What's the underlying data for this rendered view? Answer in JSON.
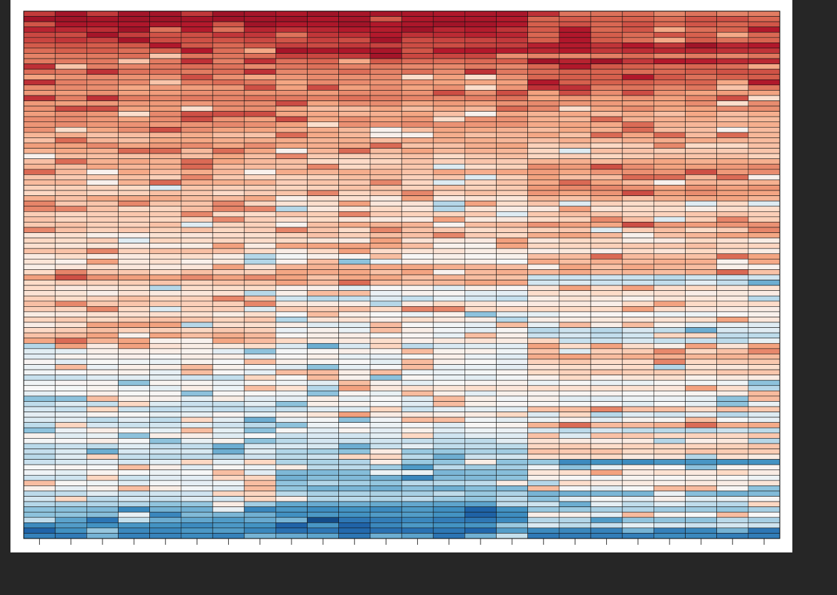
{
  "chart_data": {
    "type": "heatmap",
    "title": "",
    "xlabel": "",
    "ylabel": "",
    "n_columns": 24,
    "n_rows": 100,
    "column_groups": [
      8,
      8,
      8
    ],
    "x_tick_labels": [],
    "y_tick_labels": [],
    "colormap": "RdBu_r",
    "value_range": [
      -1,
      1
    ],
    "legend": "none",
    "grid": false,
    "group_color_levels": [
      [
        1.0,
        1.0,
        0.9,
        0.8,
        0.7,
        0.7,
        0.6,
        0.6,
        0.5,
        0.5,
        0.5,
        0.5,
        0.4,
        0.5,
        0.4,
        0.4,
        0.5,
        0.4,
        0.4,
        0.4,
        0.4,
        0.4,
        0.4,
        0.3,
        0.3,
        0.4,
        0.3,
        0.3,
        0.3,
        0.3,
        0.3,
        0.2,
        0.3,
        0.2,
        0.2,
        0.3,
        0.2,
        0.2,
        0.2,
        0.2,
        0.2,
        0.2,
        0.1,
        0.2,
        0.1,
        0.2,
        0.1,
        0.1,
        0.1,
        0.2,
        0.4,
        0.2,
        0.1,
        0.1,
        0.2,
        0.2,
        0.2,
        0.1,
        0.2,
        0.1,
        0.2,
        0.3,
        0.3,
        0.1,
        0.0,
        0.0,
        0.0,
        0.0,
        0.0,
        -0.1,
        0.0,
        0.0,
        0.0,
        0.0,
        -0.1,
        -0.1,
        0.0,
        -0.1,
        -0.1,
        0.0,
        0.0,
        0.0,
        -0.1,
        -0.1,
        -0.1,
        -0.1,
        0.0,
        0.0,
        -0.1,
        0.0,
        0.0,
        -0.1,
        -0.1,
        -0.2,
        -0.3,
        -0.3,
        -0.4,
        -0.5,
        -0.5,
        -0.6
      ],
      [
        0.9,
        0.9,
        0.9,
        0.8,
        0.8,
        0.7,
        0.7,
        0.9,
        0.7,
        0.6,
        0.5,
        0.5,
        0.4,
        0.4,
        0.4,
        0.4,
        0.5,
        0.4,
        0.3,
        0.3,
        0.4,
        0.4,
        0.3,
        0.3,
        0.3,
        0.3,
        0.3,
        0.2,
        0.2,
        0.2,
        0.3,
        0.2,
        0.2,
        0.2,
        0.2,
        0.1,
        0.1,
        0.1,
        0.2,
        0.1,
        0.3,
        0.2,
        0.2,
        0.1,
        0.3,
        0.1,
        0.0,
        0.0,
        0.3,
        0.3,
        0.3,
        0.3,
        0.0,
        0.0,
        -0.1,
        0.1,
        0.2,
        0.0,
        0.1,
        0.0,
        0.0,
        0.0,
        0.1,
        -0.1,
        0.0,
        0.0,
        0.0,
        0.0,
        0.0,
        0.0,
        0.0,
        0.1,
        0.0,
        0.0,
        0.0,
        -0.1,
        0.1,
        0.0,
        0.0,
        0.0,
        -0.1,
        -0.1,
        -0.1,
        -0.2,
        -0.1,
        -0.2,
        -0.2,
        -0.3,
        -0.3,
        -0.2,
        -0.3,
        -0.2,
        -0.2,
        -0.4,
        -0.5,
        -0.5,
        -0.6,
        -0.5,
        -0.7,
        -0.4
      ],
      [
        0.5,
        0.6,
        0.6,
        0.6,
        0.6,
        0.6,
        0.8,
        0.8,
        0.5,
        0.8,
        0.6,
        0.6,
        0.6,
        0.6,
        0.5,
        0.4,
        0.4,
        0.4,
        0.4,
        0.3,
        0.3,
        0.3,
        0.3,
        0.3,
        0.3,
        0.2,
        0.2,
        0.2,
        0.3,
        0.4,
        0.4,
        0.3,
        0.3,
        0.4,
        0.4,
        0.3,
        0.2,
        0.1,
        0.2,
        0.2,
        0.4,
        0.2,
        0.3,
        0.1,
        0.2,
        0.1,
        0.3,
        0.3,
        0.3,
        0.3,
        -0.1,
        -0.1,
        0.1,
        0.1,
        0.1,
        0.1,
        0.1,
        0.0,
        0.1,
        0.0,
        -0.1,
        -0.1,
        -0.1,
        0.1,
        0.2,
        0.3,
        0.2,
        0.1,
        0.2,
        0.1,
        0.0,
        0.1,
        0.0,
        0.0,
        0.0,
        0.2,
        -0.1,
        0.0,
        0.3,
        -0.1,
        0.2,
        0.1,
        0.2,
        0.2,
        0.1,
        -0.5,
        0.0,
        0.1,
        0.0,
        0.1,
        0.0,
        -0.3,
        0.0,
        -0.1,
        -0.2,
        0.0,
        -0.2,
        -0.1,
        -0.6,
        -0.6
      ]
    ]
  }
}
